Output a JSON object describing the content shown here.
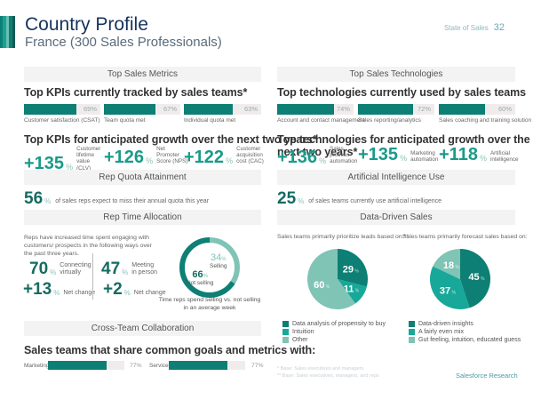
{
  "header": {
    "title": "Country Profile",
    "subtitle": "France (300 Sales Professionals)",
    "report_name": "State of Sales",
    "page_number": "32",
    "logo_stripe_colors": [
      "#0d7f74",
      "#1aa193",
      "#6cc0b3",
      "#0d7f74",
      "#155b55"
    ]
  },
  "colors": {
    "dark_teal": "#0d7f74",
    "teal": "#17a899",
    "light_teal": "#80c4b6",
    "band_bg": "#f3f3f3"
  },
  "sections": {
    "top_sales_metrics": "Top Sales Metrics",
    "top_sales_technologies": "Top Sales Technologies",
    "rep_quota_attainment": "Rep Quota Attainment",
    "ai_use": "Artificial Intelligence Use",
    "rep_time_allocation": "Rep Time Allocation",
    "data_driven_sales": "Data-Driven Sales",
    "cross_team_collaboration": "Cross-Team Collaboration"
  },
  "kpis_current": {
    "heading": "Top KPIs currently tracked by sales teams*",
    "items": [
      {
        "label": "Customer satisfaction (CSAT)",
        "value": 69,
        "display": "69%"
      },
      {
        "label": "Team quota met",
        "value": 67,
        "display": "67%"
      },
      {
        "label": "Individual quota met",
        "value": 63,
        "display": "63%"
      }
    ]
  },
  "tech_current": {
    "heading": "Top technologies currently used by sales teams",
    "items": [
      {
        "label": "Account and contact management",
        "value": 74,
        "display": "74%"
      },
      {
        "label": "Sales reporting/analytics",
        "value": 72,
        "display": "72%"
      },
      {
        "label": "Sales coaching and training solution",
        "value": 60,
        "display": "60%"
      }
    ]
  },
  "kpis_growth": {
    "heading": "Top KPIs for anticipated growth over the next two years*",
    "items": [
      {
        "value": "+135",
        "unit": "%",
        "label": "Customer lifetime value (CLV)"
      },
      {
        "value": "+126",
        "unit": "%",
        "label": "Net Promoter Score (NPS)"
      },
      {
        "value": "+122",
        "unit": "%",
        "label": "Customer acquisition cost (CAC)"
      }
    ]
  },
  "tech_growth": {
    "heading": "Top technologies for anticipated growth over the next two years*",
    "items": [
      {
        "value": "+136",
        "unit": "%",
        "label": "Sales process automation"
      },
      {
        "value": "+135",
        "unit": "%",
        "label": "Marketing automation"
      },
      {
        "value": "+118",
        "unit": "%",
        "label": "Artificial intelligence"
      }
    ]
  },
  "quota": {
    "value": "56",
    "unit": "%",
    "text": "of sales reps expect to miss their annual quota this year"
  },
  "ai": {
    "value": "25",
    "unit": "%",
    "text": "of sales teams currently use artificial intelligence"
  },
  "time_allocation": {
    "intro": "Reps have increased time spent engaging with customers/ prospects in the following ways over the past three years.",
    "stats": [
      {
        "value": "70",
        "unit": "%",
        "label": "Connecting virtually"
      },
      {
        "value": "47",
        "unit": "%",
        "label": "Meeting in person"
      },
      {
        "value": "+13",
        "unit": "%",
        "label": "Net change"
      },
      {
        "value": "+2",
        "unit": "%",
        "label": "Net change"
      }
    ],
    "donut": {
      "selling": {
        "value": 34,
        "label": "Selling"
      },
      "not_selling": {
        "value": 66,
        "label": "Not selling"
      },
      "caption": "Time reps spend selling vs. not selling in an average week"
    }
  },
  "data_driven": {
    "leads_title": "Sales teams primarily prioritize leads based on:**",
    "forecast_title": "Sales teams primarily forecast sales based on:",
    "leads_legend": [
      "Data analysis of propensity to buy",
      "Intuition",
      "Other"
    ],
    "forecast_legend": [
      "Data-driven insights",
      "A fairly even mix",
      "Gut feeling, intuition, educated guess"
    ]
  },
  "chart_data": [
    {
      "type": "pie",
      "title": "Sales teams primarily prioritize leads based on:**",
      "categories": [
        "Data analysis of propensity to buy",
        "Intuition",
        "Other"
      ],
      "values": [
        29,
        11,
        60
      ],
      "unit": "%",
      "colors": [
        "#0d7f74",
        "#17a899",
        "#80c4b6"
      ],
      "legend": "bottom"
    },
    {
      "type": "pie",
      "title": "Sales teams primarily forecast sales based on:",
      "categories": [
        "Data-driven insights",
        "A fairly even mix",
        "Gut feeling, intuition, educated guess"
      ],
      "values": [
        45,
        37,
        18
      ],
      "unit": "%",
      "colors": [
        "#0d7f74",
        "#17a899",
        "#80c4b6"
      ],
      "legend": "bottom"
    },
    {
      "type": "pie",
      "title": "Time reps spend selling vs. not selling in an average week",
      "categories": [
        "Selling",
        "Not selling"
      ],
      "values": [
        34,
        66
      ],
      "unit": "%",
      "colors": [
        "#80c4b6",
        "#0d7f74"
      ],
      "style": "donut"
    }
  ],
  "collaboration": {
    "heading": "Sales teams that share common goals and metrics with:",
    "items": [
      {
        "label": "Marketing",
        "value": 77,
        "display": "77%"
      },
      {
        "label": "Service",
        "value": 77,
        "display": "77%"
      }
    ]
  },
  "footnotes": [
    "* Base: Sales executives and managers",
    "** Base: Sales executives, managers, and reps"
  ],
  "brand": "Salesforce Research"
}
